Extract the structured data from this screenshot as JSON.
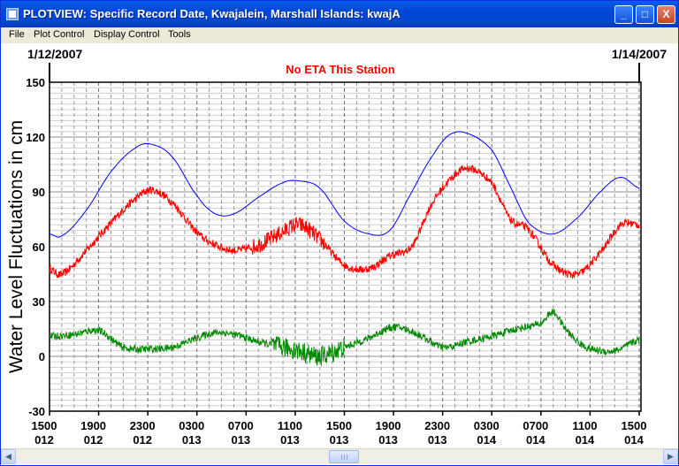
{
  "window": {
    "title": "PLOTVIEW: Specific Record Date, Kwajalein, Marshall Islands: kwajA",
    "buttons": {
      "minimize": "_",
      "maximize": "□",
      "close": "X"
    }
  },
  "menu": [
    "File",
    "Plot Control",
    "Display Control",
    "Tools"
  ],
  "colors": {
    "titlebar": "#0046d5",
    "predicted": "#0000ff",
    "observed": "#ff0000",
    "residual": "#008800",
    "status": "#ff0000",
    "grid": "#b0b0b0"
  },
  "plot": {
    "start_date": "1/12/2007",
    "end_date": "1/14/2007",
    "status": "No ETA This Station"
  },
  "chart_data": {
    "type": "line",
    "ylabel": "Water Level Fluctuations in cm",
    "ylim": [
      -30,
      150
    ],
    "yticks": [
      "150",
      "120",
      "90",
      "60",
      "30",
      "0",
      "-30"
    ],
    "xlim": [
      0,
      48
    ],
    "xticks": [
      {
        "time": "1500",
        "day": "012"
      },
      {
        "time": "1900",
        "day": "012"
      },
      {
        "time": "2300",
        "day": "012"
      },
      {
        "time": "0300",
        "day": "013"
      },
      {
        "time": "0700",
        "day": "013"
      },
      {
        "time": "1100",
        "day": "013"
      },
      {
        "time": "1500",
        "day": "013"
      },
      {
        "time": "1900",
        "day": "013"
      },
      {
        "time": "2300",
        "day": "013"
      },
      {
        "time": "0300",
        "day": "014"
      },
      {
        "time": "0700",
        "day": "014"
      },
      {
        "time": "1100",
        "day": "014"
      },
      {
        "time": "1500",
        "day": "014"
      }
    ],
    "grid": true,
    "series": [
      {
        "color": "#0000ff",
        "hours": [
          0,
          1,
          3,
          5,
          7,
          8.3,
          10,
          12,
          13.5,
          15,
          17,
          19,
          20.3,
          22,
          24,
          26,
          27.7,
          29.5,
          31,
          32.5,
          34,
          36,
          37.5,
          39,
          41,
          43,
          45,
          46.5,
          48
        ],
        "values": [
          67,
          66,
          80,
          101,
          114,
          116,
          109,
          88,
          78,
          78,
          87,
          95,
          96,
          92,
          74,
          67,
          69,
          90,
          108,
          121,
          122,
          113,
          93,
          73,
          67,
          76,
          91,
          98,
          92
        ]
      },
      {
        "color": "#ff0000",
        "hours": [
          0,
          1,
          3,
          5,
          7,
          8.3,
          10,
          12,
          13.5,
          15,
          17,
          19,
          20.3,
          22,
          24,
          26,
          27.7,
          29.5,
          31,
          32.5,
          34,
          36,
          37.5,
          39,
          41,
          43,
          45,
          46.5,
          48
        ],
        "values": [
          48,
          45,
          58,
          73,
          86,
          91,
          84,
          68,
          61,
          58,
          61,
          68,
          72,
          64,
          50,
          48,
          55,
          60,
          82,
          96,
          103,
          95,
          75,
          69,
          50,
          45,
          58,
          72,
          72
        ]
      },
      {
        "color": "#008800",
        "hours": [
          0,
          2,
          4,
          6,
          8,
          10,
          12,
          13.5,
          15,
          17,
          19,
          20.3,
          22,
          24,
          26,
          28,
          30,
          32,
          34,
          36,
          38,
          40,
          41,
          42,
          43,
          44,
          46,
          48
        ],
        "values": [
          11,
          12,
          14,
          5,
          4,
          5,
          10,
          13,
          12,
          8,
          5,
          3,
          0,
          5,
          10,
          16,
          12,
          5,
          8,
          11,
          15,
          18,
          24,
          15,
          8,
          4,
          3,
          9
        ]
      }
    ]
  }
}
